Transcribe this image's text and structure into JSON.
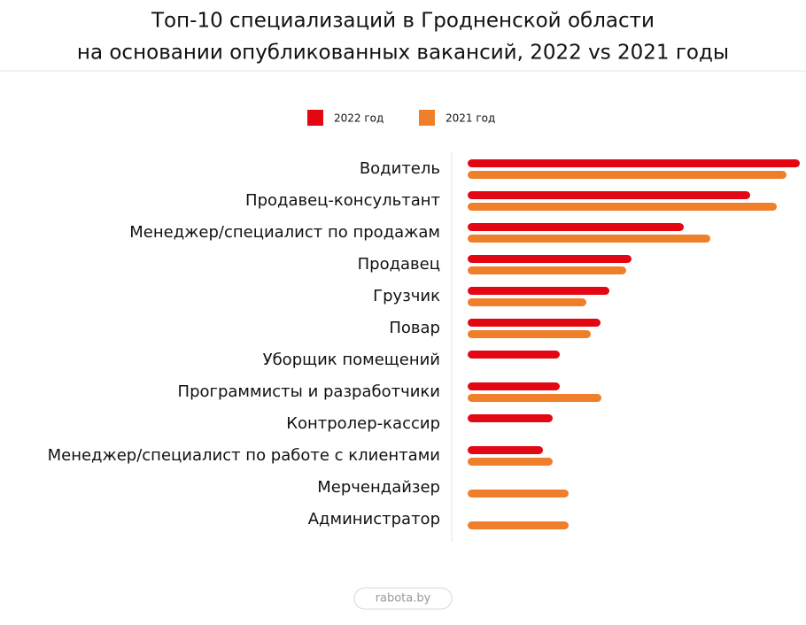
{
  "chart_data": {
    "type": "barh",
    "title": "Топ-10 специализаций в Гродненской области",
    "subtitle": "на основании опубликованных вакансий, 2022 vs 2021 годы",
    "categories": [
      "Водитель",
      "Продавец-консультант",
      "Менеджер/специалист по продажам",
      "Продавец",
      "Грузчик",
      "Повар",
      "Уборщик помещений",
      "Программисты и разработчики",
      "Контролер-кассир",
      "Менеджер/специалист по работе с клиентами",
      "Мерчендайзер",
      "Администратор"
    ],
    "series": [
      {
        "name": "2022 год",
        "color": "#e30613",
        "values": [
          375,
          319,
          244,
          185,
          160,
          150,
          104,
          104,
          96,
          85,
          null,
          null
        ]
      },
      {
        "name": "2021 год",
        "color": "#f07f2a",
        "values": [
          360,
          349,
          274,
          179,
          134,
          139,
          null,
          151,
          null,
          96,
          114,
          114
        ]
      }
    ],
    "source": "rabota.by"
  }
}
